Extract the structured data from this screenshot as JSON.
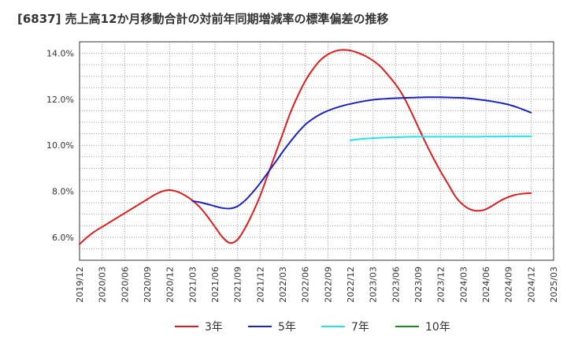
{
  "chart_data": {
    "type": "line",
    "title": "[6837]  売上高12か月移動合計の対前年同期増減率の標準偏差の推移",
    "xlabel": "",
    "ylabel": "",
    "ylim": [
      5.0,
      14.5
    ],
    "grid": true,
    "legend_placement": "bottom",
    "y_ticks": [
      {
        "value": 6.0,
        "label": "6.0%"
      },
      {
        "value": 8.0,
        "label": "8.0%"
      },
      {
        "value": 10.0,
        "label": "10.0%"
      },
      {
        "value": 12.0,
        "label": "12.0%"
      },
      {
        "value": 14.0,
        "label": "14.0%"
      }
    ],
    "x_ticks": [
      "2019/12",
      "2020/03",
      "2020/06",
      "2020/09",
      "2020/12",
      "2021/03",
      "2021/06",
      "2021/09",
      "2021/12",
      "2022/03",
      "2022/06",
      "2022/09",
      "2022/12",
      "2023/03",
      "2023/06",
      "2023/09",
      "2023/12",
      "2024/03",
      "2024/06",
      "2024/09",
      "2024/12",
      "2025/03"
    ],
    "series": [
      {
        "name": "3年",
        "color": "#dd1e1e",
        "points": [
          [
            "2019/12",
            5.7
          ],
          [
            "2020/01",
            6.0
          ],
          [
            "2020/02",
            6.25
          ],
          [
            "2020/03",
            6.45
          ],
          [
            "2020/04",
            6.65
          ],
          [
            "2020/05",
            6.85
          ],
          [
            "2020/06",
            7.05
          ],
          [
            "2020/07",
            7.25
          ],
          [
            "2020/08",
            7.45
          ],
          [
            "2020/09",
            7.65
          ],
          [
            "2020/10",
            7.85
          ],
          [
            "2020/11",
            8.0
          ],
          [
            "2020/12",
            8.05
          ],
          [
            "2021/01",
            7.98
          ],
          [
            "2021/02",
            7.82
          ],
          [
            "2021/03",
            7.6
          ],
          [
            "2021/04",
            7.3
          ],
          [
            "2021/05",
            6.9
          ],
          [
            "2021/06",
            6.45
          ],
          [
            "2021/07",
            6.0
          ],
          [
            "2021/08",
            5.75
          ],
          [
            "2021/09",
            5.9
          ],
          [
            "2021/10",
            6.4
          ],
          [
            "2021/11",
            7.05
          ],
          [
            "2021/12",
            7.8
          ],
          [
            "2022/01",
            8.7
          ],
          [
            "2022/02",
            9.6
          ],
          [
            "2022/03",
            10.5
          ],
          [
            "2022/04",
            11.4
          ],
          [
            "2022/05",
            12.15
          ],
          [
            "2022/06",
            12.8
          ],
          [
            "2022/07",
            13.3
          ],
          [
            "2022/08",
            13.7
          ],
          [
            "2022/09",
            13.95
          ],
          [
            "2022/10",
            14.1
          ],
          [
            "2022/11",
            14.15
          ],
          [
            "2022/12",
            14.12
          ],
          [
            "2023/01",
            14.02
          ],
          [
            "2023/02",
            13.88
          ],
          [
            "2023/03",
            13.68
          ],
          [
            "2023/04",
            13.42
          ],
          [
            "2023/05",
            13.05
          ],
          [
            "2023/06",
            12.65
          ],
          [
            "2023/07",
            12.15
          ],
          [
            "2023/08",
            11.5
          ],
          [
            "2023/09",
            10.8
          ],
          [
            "2023/10",
            10.1
          ],
          [
            "2023/11",
            9.45
          ],
          [
            "2023/12",
            8.85
          ],
          [
            "2024/01",
            8.3
          ],
          [
            "2024/02",
            7.75
          ],
          [
            "2024/03",
            7.4
          ],
          [
            "2024/04",
            7.2
          ],
          [
            "2024/05",
            7.15
          ],
          [
            "2024/06",
            7.22
          ],
          [
            "2024/07",
            7.4
          ],
          [
            "2024/08",
            7.6
          ],
          [
            "2024/09",
            7.75
          ],
          [
            "2024/10",
            7.85
          ],
          [
            "2024/11",
            7.9
          ],
          [
            "2024/12",
            7.92
          ]
        ]
      },
      {
        "name": "5年",
        "color": "#1c24bf",
        "points": [
          [
            "2021/03",
            7.58
          ],
          [
            "2021/04",
            7.52
          ],
          [
            "2021/05",
            7.44
          ],
          [
            "2021/06",
            7.35
          ],
          [
            "2021/07",
            7.27
          ],
          [
            "2021/08",
            7.25
          ],
          [
            "2021/09",
            7.35
          ],
          [
            "2021/10",
            7.6
          ],
          [
            "2021/11",
            7.95
          ],
          [
            "2021/12",
            8.35
          ],
          [
            "2022/01",
            8.8
          ],
          [
            "2022/02",
            9.25
          ],
          [
            "2022/03",
            9.72
          ],
          [
            "2022/04",
            10.15
          ],
          [
            "2022/05",
            10.55
          ],
          [
            "2022/06",
            10.9
          ],
          [
            "2022/07",
            11.15
          ],
          [
            "2022/08",
            11.35
          ],
          [
            "2022/09",
            11.5
          ],
          [
            "2022/10",
            11.62
          ],
          [
            "2022/11",
            11.72
          ],
          [
            "2022/12",
            11.8
          ],
          [
            "2023/01",
            11.87
          ],
          [
            "2023/02",
            11.93
          ],
          [
            "2023/03",
            11.98
          ],
          [
            "2023/04",
            12.01
          ],
          [
            "2023/05",
            12.03
          ],
          [
            "2023/06",
            12.05
          ],
          [
            "2023/07",
            12.06
          ],
          [
            "2023/08",
            12.07
          ],
          [
            "2023/09",
            12.08
          ],
          [
            "2023/10",
            12.09
          ],
          [
            "2023/11",
            12.09
          ],
          [
            "2023/12",
            12.09
          ],
          [
            "2024/01",
            12.08
          ],
          [
            "2024/02",
            12.07
          ],
          [
            "2024/03",
            12.06
          ],
          [
            "2024/04",
            12.03
          ],
          [
            "2024/05",
            11.99
          ],
          [
            "2024/06",
            11.95
          ],
          [
            "2024/07",
            11.9
          ],
          [
            "2024/08",
            11.84
          ],
          [
            "2024/09",
            11.77
          ],
          [
            "2024/10",
            11.67
          ],
          [
            "2024/11",
            11.55
          ],
          [
            "2024/12",
            11.42
          ]
        ]
      },
      {
        "name": "7年",
        "color": "#22e3ef",
        "points": [
          [
            "2022/12",
            10.22
          ],
          [
            "2023/01",
            10.26
          ],
          [
            "2023/02",
            10.29
          ],
          [
            "2023/03",
            10.31
          ],
          [
            "2023/04",
            10.33
          ],
          [
            "2023/05",
            10.34
          ],
          [
            "2023/06",
            10.35
          ],
          [
            "2023/07",
            10.36
          ],
          [
            "2023/08",
            10.37
          ],
          [
            "2023/09",
            10.37
          ],
          [
            "2023/10",
            10.37
          ],
          [
            "2023/11",
            10.37
          ],
          [
            "2023/12",
            10.37
          ],
          [
            "2024/01",
            10.37
          ],
          [
            "2024/02",
            10.37
          ],
          [
            "2024/03",
            10.37
          ],
          [
            "2024/04",
            10.37
          ],
          [
            "2024/05",
            10.37
          ],
          [
            "2024/06",
            10.38
          ],
          [
            "2024/07",
            10.38
          ],
          [
            "2024/08",
            10.38
          ],
          [
            "2024/09",
            10.39
          ],
          [
            "2024/10",
            10.39
          ],
          [
            "2024/11",
            10.39
          ],
          [
            "2024/12",
            10.39
          ]
        ]
      },
      {
        "name": "10年",
        "color": "#1e8a1e",
        "points": []
      }
    ]
  }
}
